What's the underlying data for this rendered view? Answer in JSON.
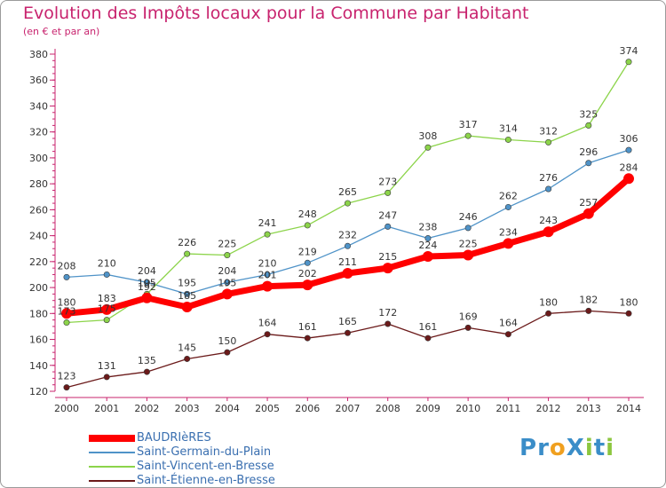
{
  "header": {
    "title": "Evolution des Impôts locaux pour la Commune par Habitant",
    "subtitle": "(en € et par an)"
  },
  "logo": {
    "text": "ProXiti",
    "letters": [
      {
        "ch": "P",
        "color": "#3a8dc8"
      },
      {
        "ch": "r",
        "color": "#3a8dc8"
      },
      {
        "ch": "o",
        "color": "#f0a020"
      },
      {
        "ch": "X",
        "color": "#3a8dc8"
      },
      {
        "ch": "i",
        "color": "#8cc63f"
      },
      {
        "ch": "t",
        "color": "#3a8dc8"
      },
      {
        "ch": "i",
        "color": "#8cc63f"
      }
    ]
  },
  "chart_data": {
    "type": "line",
    "title": "Evolution des Impôts locaux pour la Commune par Habitant",
    "subtitle": "(en € et par an)",
    "x": [
      2000,
      2001,
      2002,
      2003,
      2004,
      2005,
      2006,
      2007,
      2008,
      2009,
      2010,
      2011,
      2012,
      2013,
      2014
    ],
    "ylim": [
      120,
      380
    ],
    "yticks": [
      120,
      140,
      160,
      180,
      200,
      220,
      240,
      260,
      280,
      300,
      320,
      340,
      360,
      380
    ],
    "grid": false,
    "legend_position": "bottom-left",
    "series": [
      {
        "name": "BAUDRIèRES",
        "color": "#ff0000",
        "values": [
          180,
          183,
          192,
          185,
          195,
          201,
          202,
          211,
          215,
          224,
          225,
          234,
          243,
          257,
          284
        ]
      },
      {
        "name": "Saint-Germain-du-Plain",
        "color": "#4f93c8",
        "values": [
          208,
          210,
          204,
          195,
          204,
          210,
          219,
          232,
          247,
          238,
          246,
          262,
          276,
          296,
          306
        ]
      },
      {
        "name": "Saint-Vincent-en-Bresse",
        "color": "#8cd44a",
        "values": [
          173,
          175,
          195,
          226,
          225,
          241,
          248,
          265,
          273,
          308,
          317,
          314,
          312,
          325,
          374
        ]
      },
      {
        "name": "Saint-Étienne-en-Bresse",
        "color": "#6b1a1a",
        "values": [
          123,
          131,
          135,
          145,
          150,
          164,
          161,
          165,
          172,
          161,
          169,
          164,
          180,
          182,
          180
        ]
      }
    ]
  }
}
